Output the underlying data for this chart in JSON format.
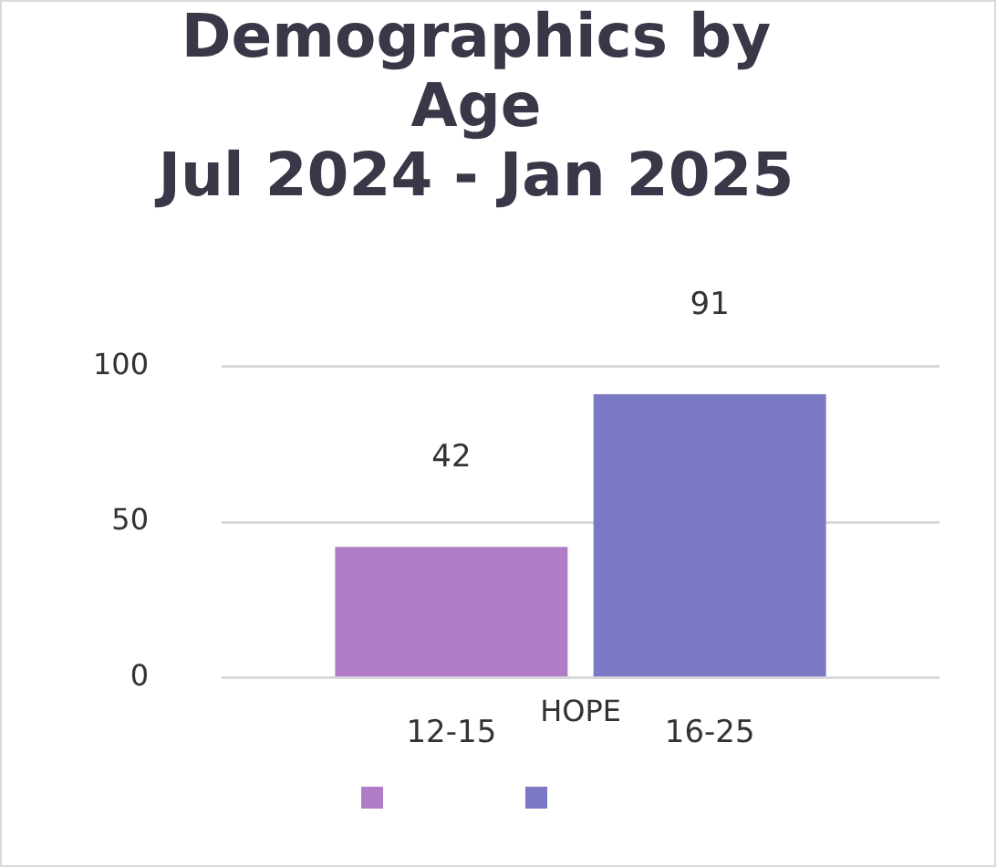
{
  "chart_data": {
    "type": "bar",
    "title": "Demographics by Age\nJul 2024 - Jan 2025",
    "categories": [
      "HOPE"
    ],
    "series": [
      {
        "name": "12-15",
        "color": "#b07cc6",
        "values": [
          42
        ]
      },
      {
        "name": "16-25",
        "color": "#7b78c4",
        "values": [
          91
        ]
      }
    ],
    "ylim": [
      0,
      100
    ],
    "yticks": [
      0,
      50,
      100
    ],
    "grid": "y",
    "data_labels": true
  }
}
